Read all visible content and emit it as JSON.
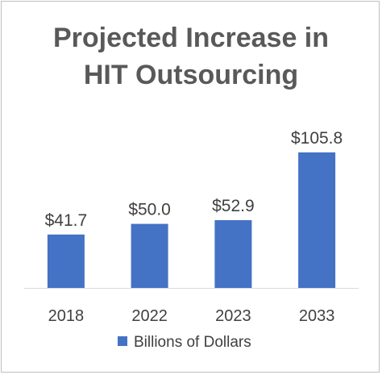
{
  "chart_data": {
    "type": "bar",
    "title_lines": [
      "Projected Increase in",
      "HIT Outsourcing"
    ],
    "categories": [
      "2018",
      "2022",
      "2023",
      "2033"
    ],
    "series": [
      {
        "name": "Billions of Dollars",
        "values": [
          41.7,
          50.0,
          52.9,
          105.8
        ],
        "labels": [
          "$41.7",
          "$50.0",
          "$52.9",
          "$105.8"
        ],
        "color": "#4472c4"
      }
    ],
    "ylim": [
      0,
      120
    ],
    "grid": false,
    "legend_position": "bottom",
    "axis_color": "#d9d9d9"
  }
}
